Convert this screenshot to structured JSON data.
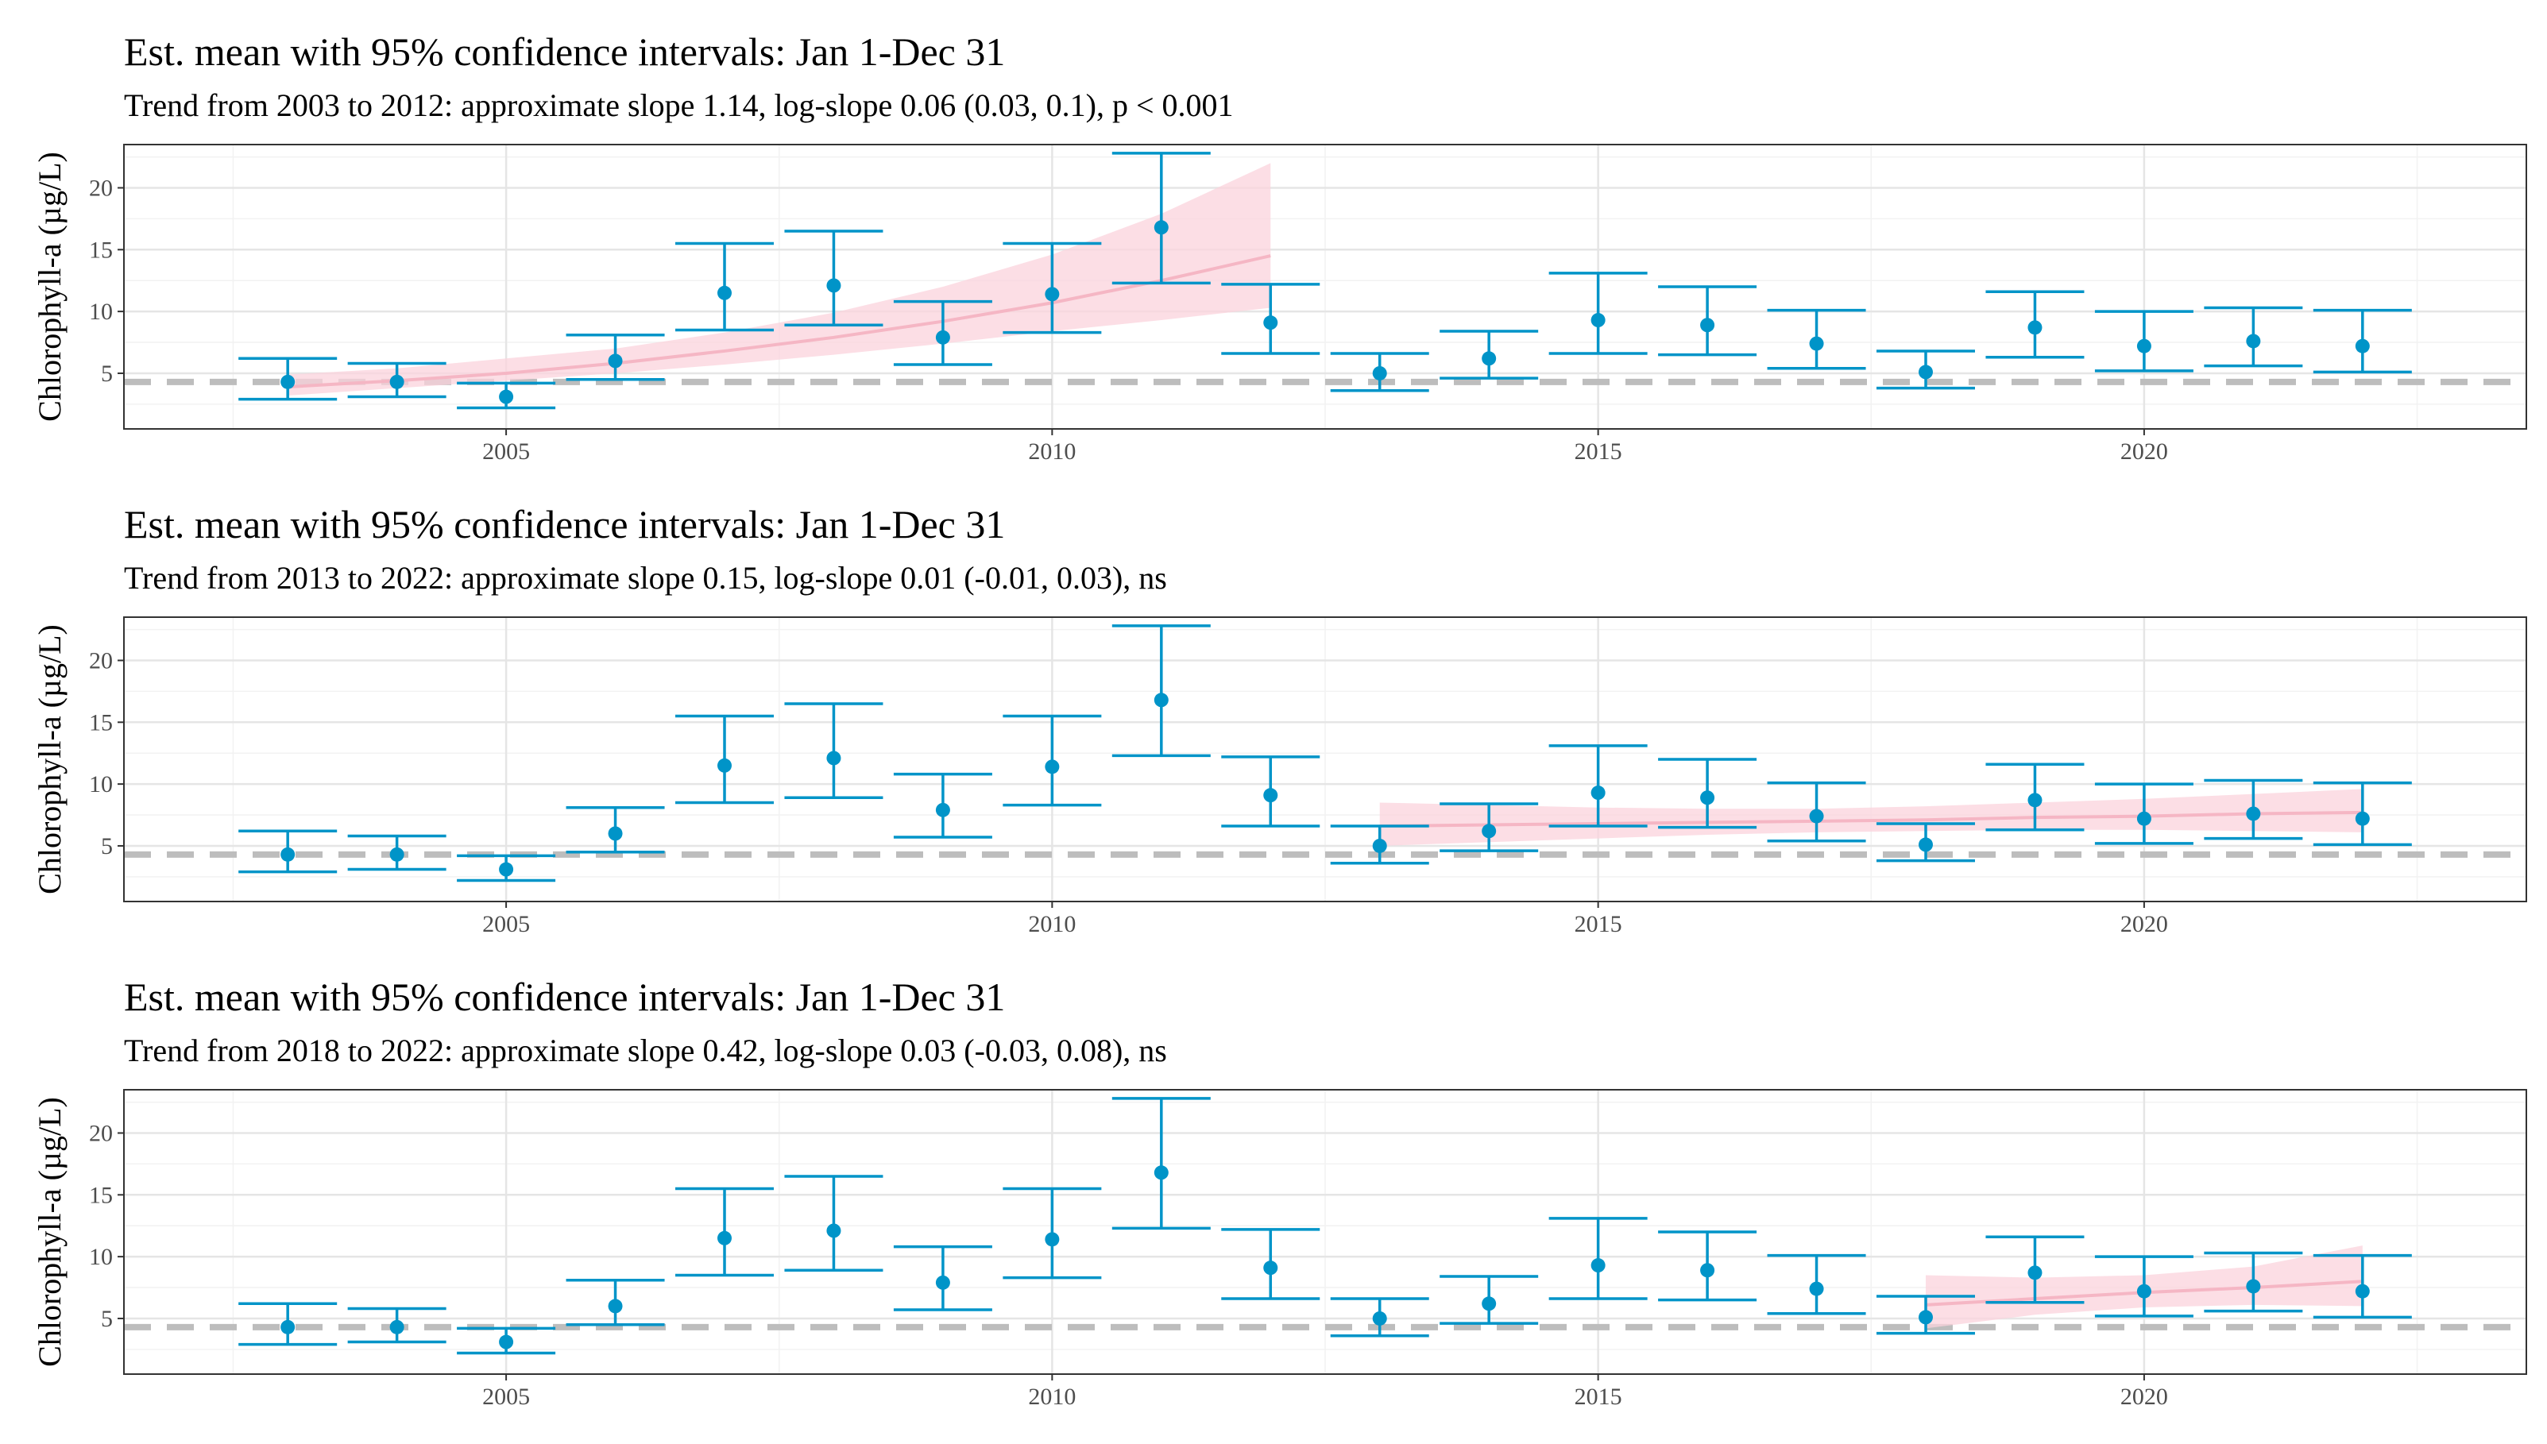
{
  "colors": {
    "points": "#0094c8",
    "errorbars": "#0094c8",
    "trend_line": "#f5b6c4",
    "trend_band": "#fbd3dc",
    "reference_line": "#bdbdbd",
    "grid_major": "#e5e5e5",
    "grid_minor": "#f2f2f2",
    "panel_border": "#333333"
  },
  "chart_data": [
    {
      "type": "scatter",
      "title": "Est. mean with 95% confidence intervals: Jan 1-Dec 31",
      "subtitle": "Trend from 2003 to 2012: approximate slope 1.14, log-slope 0.06 (0.03, 0.1), p < 0.001",
      "ylabel": "Chlorophyll-a (µg/L)",
      "xlabel": "",
      "xlim": [
        2001.5,
        2023.5
      ],
      "ylim": [
        0.5,
        23.5
      ],
      "xticks": [
        2005,
        2010,
        2015,
        2020
      ],
      "yticks": [
        5,
        10,
        15,
        20
      ],
      "reference_line": 4.3,
      "grid": true,
      "series": [
        {
          "x": [
            2003,
            2004,
            2005,
            2006,
            2007,
            2008,
            2009,
            2010,
            2011,
            2012,
            2013,
            2014,
            2015,
            2016,
            2017,
            2018,
            2019,
            2020,
            2021,
            2022
          ],
          "y": [
            4.3,
            4.3,
            3.1,
            6.0,
            11.5,
            12.1,
            7.9,
            11.4,
            16.8,
            9.1,
            5.0,
            6.2,
            9.3,
            8.9,
            7.4,
            5.1,
            8.7,
            7.2,
            7.6,
            7.2
          ],
          "lower": [
            2.9,
            3.1,
            2.2,
            4.5,
            8.5,
            8.9,
            5.7,
            8.3,
            12.3,
            6.6,
            3.6,
            4.6,
            6.6,
            6.5,
            5.4,
            3.8,
            6.3,
            5.2,
            5.6,
            5.1
          ],
          "upper": [
            6.2,
            5.8,
            4.2,
            8.1,
            15.5,
            16.5,
            10.8,
            15.5,
            22.8,
            12.2,
            6.6,
            8.4,
            13.1,
            12.0,
            10.1,
            6.8,
            11.6,
            10.0,
            10.3,
            10.1
          ]
        }
      ],
      "trend": {
        "x": [
          2003,
          2004,
          2005,
          2006,
          2007,
          2008,
          2009,
          2010,
          2011,
          2012
        ],
        "fit": [
          3.9,
          4.4,
          5.0,
          5.8,
          6.8,
          7.9,
          9.2,
          10.7,
          12.5,
          14.5
        ],
        "lower": [
          3.2,
          3.8,
          4.4,
          5.0,
          5.7,
          6.5,
          7.4,
          8.4,
          9.3,
          10.3
        ],
        "upper": [
          4.9,
          5.4,
          6.2,
          7.0,
          8.3,
          9.9,
          12.0,
          14.6,
          17.9,
          22.0
        ]
      }
    },
    {
      "type": "scatter",
      "title": "Est. mean with 95% confidence intervals: Jan 1-Dec 31",
      "subtitle": "Trend from 2013 to 2022: approximate slope 0.15, log-slope 0.01 (-0.01, 0.03), ns",
      "ylabel": "Chlorophyll-a (µg/L)",
      "xlabel": "",
      "xlim": [
        2001.5,
        2023.5
      ],
      "ylim": [
        0.5,
        23.5
      ],
      "xticks": [
        2005,
        2010,
        2015,
        2020
      ],
      "yticks": [
        5,
        10,
        15,
        20
      ],
      "reference_line": 4.3,
      "grid": true,
      "series": [
        {
          "x": [
            2003,
            2004,
            2005,
            2006,
            2007,
            2008,
            2009,
            2010,
            2011,
            2012,
            2013,
            2014,
            2015,
            2016,
            2017,
            2018,
            2019,
            2020,
            2021,
            2022
          ],
          "y": [
            4.3,
            4.3,
            3.1,
            6.0,
            11.5,
            12.1,
            7.9,
            11.4,
            16.8,
            9.1,
            5.0,
            6.2,
            9.3,
            8.9,
            7.4,
            5.1,
            8.7,
            7.2,
            7.6,
            7.2
          ],
          "lower": [
            2.9,
            3.1,
            2.2,
            4.5,
            8.5,
            8.9,
            5.7,
            8.3,
            12.3,
            6.6,
            3.6,
            4.6,
            6.6,
            6.5,
            5.4,
            3.8,
            6.3,
            5.2,
            5.6,
            5.1
          ],
          "upper": [
            6.2,
            5.8,
            4.2,
            8.1,
            15.5,
            16.5,
            10.8,
            15.5,
            22.8,
            12.2,
            6.6,
            8.4,
            13.1,
            12.0,
            10.1,
            6.8,
            11.6,
            10.0,
            10.3,
            10.1
          ]
        }
      ],
      "trend": {
        "x": [
          2013,
          2014,
          2015,
          2016,
          2017,
          2018,
          2019,
          2020,
          2021,
          2022
        ],
        "fit": [
          6.6,
          6.7,
          6.8,
          6.9,
          7.0,
          7.1,
          7.3,
          7.4,
          7.6,
          7.7
        ],
        "lower": [
          5.0,
          5.3,
          5.6,
          5.9,
          6.1,
          6.2,
          6.3,
          6.3,
          6.2,
          6.1
        ],
        "upper": [
          8.5,
          8.3,
          8.1,
          8.0,
          8.0,
          8.2,
          8.5,
          8.8,
          9.2,
          9.6
        ]
      }
    },
    {
      "type": "scatter",
      "title": "Est. mean with 95% confidence intervals: Jan 1-Dec 31",
      "subtitle": "Trend from 2018 to 2022: approximate slope 0.42, log-slope 0.03 (-0.03, 0.08), ns",
      "ylabel": "Chlorophyll-a (µg/L)",
      "xlabel": "",
      "xlim": [
        2001.5,
        2023.5
      ],
      "ylim": [
        0.5,
        23.5
      ],
      "xticks": [
        2005,
        2010,
        2015,
        2020
      ],
      "yticks": [
        5,
        10,
        15,
        20
      ],
      "reference_line": 4.3,
      "grid": true,
      "series": [
        {
          "x": [
            2003,
            2004,
            2005,
            2006,
            2007,
            2008,
            2009,
            2010,
            2011,
            2012,
            2013,
            2014,
            2015,
            2016,
            2017,
            2018,
            2019,
            2020,
            2021,
            2022
          ],
          "y": [
            4.3,
            4.3,
            3.1,
            6.0,
            11.5,
            12.1,
            7.9,
            11.4,
            16.8,
            9.1,
            5.0,
            6.2,
            9.3,
            8.9,
            7.4,
            5.1,
            8.7,
            7.2,
            7.6,
            7.2
          ],
          "lower": [
            2.9,
            3.1,
            2.2,
            4.5,
            8.5,
            8.9,
            5.7,
            8.3,
            12.3,
            6.6,
            3.6,
            4.6,
            6.6,
            6.5,
            5.4,
            3.8,
            6.3,
            5.2,
            5.6,
            5.1
          ],
          "upper": [
            6.2,
            5.8,
            4.2,
            8.1,
            15.5,
            16.5,
            10.8,
            15.5,
            22.8,
            12.2,
            6.6,
            8.4,
            13.1,
            12.0,
            10.1,
            6.8,
            11.6,
            10.0,
            10.3,
            10.1
          ]
        }
      ],
      "trend": {
        "x": [
          2018,
          2019,
          2020,
          2021,
          2022
        ],
        "fit": [
          6.1,
          6.6,
          7.1,
          7.5,
          8.0
        ],
        "lower": [
          4.2,
          5.3,
          5.9,
          6.1,
          6.0
        ],
        "upper": [
          8.5,
          8.3,
          8.5,
          9.2,
          10.9
        ]
      }
    }
  ]
}
